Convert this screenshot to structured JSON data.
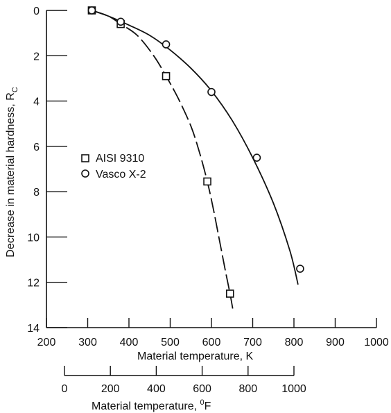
{
  "chart_data": {
    "type": "scatter",
    "title": "",
    "x_axis": {
      "label_main": "Material temperature, ",
      "label_unit": "K",
      "ticks": [
        "200",
        "300",
        "400",
        "500",
        "600",
        "700",
        "800",
        "900",
        "1000"
      ],
      "range": [
        200,
        1000
      ]
    },
    "x2_axis": {
      "label_main": "Material temperature, ",
      "label_unit_sup": "0",
      "label_unit": "F",
      "ticks": [
        "0",
        "200",
        "400",
        "600",
        "800",
        "1000"
      ],
      "range": [
        0,
        1000
      ]
    },
    "y_axis": {
      "label_main": "Decrease in material hardness, R",
      "label_sub": "C",
      "ticks": [
        "0",
        "2",
        "4",
        "6",
        "8",
        "10",
        "12",
        "14"
      ],
      "range": [
        0,
        14
      ],
      "inverted": true
    },
    "legend": {
      "placement": "middle-left",
      "entries": [
        "AISI 9310",
        "Vasco X-2"
      ]
    },
    "series": [
      {
        "name": "AISI 9310",
        "marker": "square",
        "line_style": "dashed",
        "points": [
          [
            310,
            0.0
          ],
          [
            380,
            0.6
          ],
          [
            490,
            2.9
          ],
          [
            590,
            7.55
          ],
          [
            645,
            12.5
          ]
        ],
        "curve": [
          [
            310,
            0.0
          ],
          [
            350,
            0.25
          ],
          [
            380,
            0.6
          ],
          [
            420,
            1.1
          ],
          [
            460,
            2.0
          ],
          [
            490,
            2.9
          ],
          [
            520,
            3.9
          ],
          [
            550,
            5.1
          ],
          [
            570,
            6.2
          ],
          [
            590,
            7.55
          ],
          [
            605,
            8.8
          ],
          [
            620,
            10.2
          ],
          [
            635,
            11.6
          ],
          [
            645,
            12.5
          ],
          [
            652,
            13.2
          ]
        ]
      },
      {
        "name": "Vasco X-2",
        "marker": "circle",
        "line_style": "solid",
        "points": [
          [
            310,
            0.0
          ],
          [
            380,
            0.5
          ],
          [
            490,
            1.5
          ],
          [
            600,
            3.6
          ],
          [
            710,
            6.5
          ],
          [
            815,
            11.4
          ]
        ],
        "curve": [
          [
            310,
            0.0
          ],
          [
            350,
            0.25
          ],
          [
            400,
            0.65
          ],
          [
            450,
            1.1
          ],
          [
            500,
            1.75
          ],
          [
            550,
            2.55
          ],
          [
            600,
            3.55
          ],
          [
            650,
            4.85
          ],
          [
            700,
            6.5
          ],
          [
            750,
            8.5
          ],
          [
            790,
            10.6
          ],
          [
            810,
            12.1
          ]
        ]
      }
    ]
  }
}
